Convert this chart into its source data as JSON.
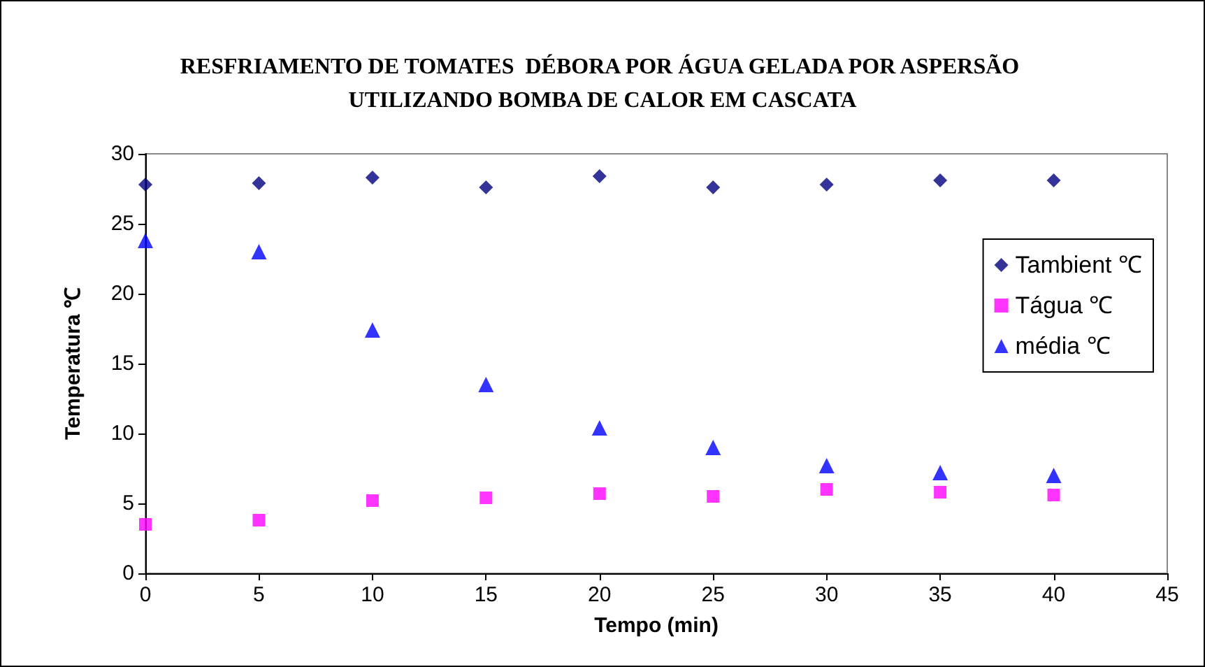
{
  "chart_data": {
    "type": "scatter",
    "title": "RESFRIAMENTO DE TOMATES  DÉBORA POR ÁGUA GELADA POR ASPERSÃO UTILIZANDO BOMBA DE CALOR EM CASCATA",
    "xlabel": "Tempo (min)",
    "ylabel": "Temperatura ℃",
    "x": [
      0,
      5,
      10,
      15,
      20,
      25,
      30,
      35,
      40
    ],
    "series": [
      {
        "name": "Tambient ℃",
        "color": "#000080",
        "marker": "diamond",
        "values": [
          27.8,
          27.9,
          28.3,
          27.6,
          28.4,
          27.6,
          27.8,
          28.1,
          28.1
        ]
      },
      {
        "name": "Tágua ℃",
        "color": "#ff00ff",
        "marker": "square",
        "values": [
          3.5,
          3.8,
          5.2,
          5.4,
          5.7,
          5.5,
          6.0,
          5.8,
          5.6
        ]
      },
      {
        "name": "média ℃",
        "color": "#0000ff",
        "marker": "triangle",
        "values": [
          23.8,
          23.0,
          17.4,
          13.5,
          10.4,
          9.0,
          7.7,
          7.2,
          7.0
        ]
      }
    ],
    "xlim": [
      0,
      45
    ],
    "xticks": [
      0,
      5,
      10,
      15,
      20,
      25,
      30,
      35,
      40,
      45
    ],
    "ylim": [
      0,
      30
    ],
    "yticks": [
      0,
      5,
      10,
      15,
      20,
      25,
      30
    ],
    "grid": false,
    "legend": "right"
  }
}
